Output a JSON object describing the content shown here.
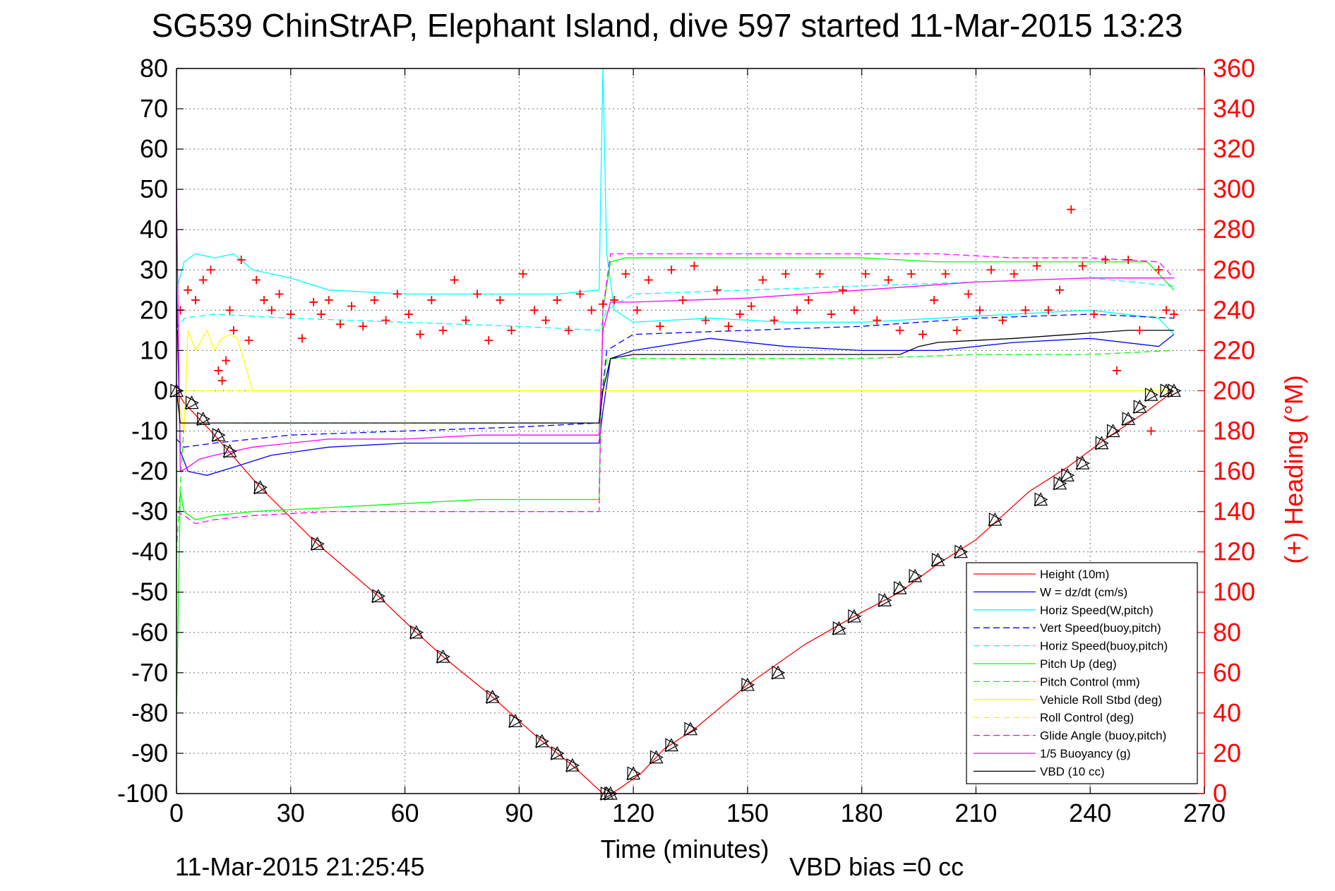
{
  "title": "SG539 ChinStrAP, Elephant Island, dive 597 started 11-Mar-2015 13:23",
  "footer": {
    "timestamp": "11-Mar-2015 21:25:45",
    "vbd_bias": "VBD bias =0 cc"
  },
  "colors": {
    "red": "#ff0000",
    "blue": "#0000ff",
    "cyan": "#00ffff",
    "green": "#00ff00",
    "yellow": "#ffff00",
    "magenta": "#ff00ff",
    "black": "#000000"
  },
  "chart_data": {
    "type": "line",
    "xlabel": "Time (minutes)",
    "ylabel": "",
    "y2label": "(+) Heading (°M)",
    "xlim": [
      0,
      270
    ],
    "ylim": [
      -100,
      80
    ],
    "y2lim": [
      0,
      360
    ],
    "xticks": [
      0,
      30,
      60,
      90,
      120,
      150,
      180,
      210,
      240,
      270
    ],
    "yticks": [
      -100,
      -90,
      -80,
      -70,
      -60,
      -50,
      -40,
      -30,
      -20,
      -10,
      0,
      10,
      20,
      30,
      40,
      50,
      60,
      70,
      80
    ],
    "y2ticks": [
      0,
      20,
      40,
      60,
      80,
      100,
      120,
      140,
      160,
      180,
      200,
      220,
      240,
      260,
      280,
      300,
      320,
      340,
      360
    ],
    "grid": true,
    "legend_position": "bottom-right",
    "series": [
      {
        "name": "Height (10m)",
        "color": "#ff0000",
        "dash": false,
        "x": [
          0,
          2,
          10,
          22,
          37,
          53,
          63,
          70,
          83,
          90,
          96,
          100,
          104,
          112,
          114,
          116,
          122,
          128,
          136,
          150,
          165,
          178,
          190,
          200,
          210,
          224,
          234,
          244,
          255,
          262
        ],
        "y": [
          0,
          -3,
          -11,
          -24,
          -38,
          -51,
          -60,
          -66,
          -76,
          -82,
          -87,
          -90,
          -93,
          -100,
          -100,
          -99,
          -95,
          -89,
          -84,
          -73,
          -63,
          -56,
          -50,
          -43,
          -37,
          -25,
          -19,
          -12,
          -5,
          0
        ]
      },
      {
        "name": "W = dz/dt (cm/s)",
        "color": "#0000ff",
        "dash": false,
        "x": [
          0,
          1,
          3,
          8,
          15,
          25,
          40,
          60,
          80,
          100,
          111,
          112,
          114,
          120,
          140,
          160,
          180,
          200,
          220,
          240,
          258,
          262
        ],
        "y": [
          25,
          -15,
          -20,
          -21,
          -19,
          -16,
          -14,
          -13,
          -13,
          -13,
          -13,
          -5,
          8,
          10,
          13,
          11,
          10,
          10,
          12,
          13,
          11,
          14
        ]
      },
      {
        "name": "Horiz Speed(W,pitch)",
        "color": "#00ffff",
        "dash": false,
        "x": [
          0,
          2,
          5,
          10,
          15,
          20,
          30,
          40,
          60,
          80,
          100,
          111,
          112,
          113,
          115,
          120,
          140,
          160,
          180,
          200,
          220,
          240,
          258,
          262
        ],
        "y": [
          25,
          32,
          34,
          33,
          34,
          30,
          28,
          25,
          24,
          24,
          24,
          25,
          80,
          34,
          20,
          17,
          18,
          17,
          17,
          18,
          19,
          20,
          18,
          14
        ]
      },
      {
        "name": "Vert Speed(buoy,pitch)",
        "color": "#0000ff",
        "dash": true,
        "x": [
          0,
          2,
          10,
          30,
          60,
          90,
          111,
          113,
          120,
          150,
          180,
          210,
          240,
          262
        ],
        "y": [
          -12,
          -14,
          -13,
          -11,
          -10,
          -9,
          -8,
          10,
          14,
          15,
          16,
          18,
          19,
          18
        ]
      },
      {
        "name": "Horiz Speed(buoy,pitch)",
        "color": "#00ffff",
        "dash": true,
        "x": [
          0,
          2,
          10,
          30,
          60,
          90,
          111,
          113,
          120,
          150,
          180,
          210,
          240,
          262
        ],
        "y": [
          15,
          18,
          19,
          18,
          17,
          16,
          15,
          20,
          24,
          25,
          26,
          27,
          28,
          26
        ]
      },
      {
        "name": "Pitch Up (deg)",
        "color": "#00ff00",
        "dash": false,
        "x": [
          0,
          1,
          2,
          5,
          10,
          20,
          40,
          60,
          80,
          100,
          111,
          112,
          114,
          118,
          140,
          160,
          180,
          200,
          220,
          240,
          255,
          262
        ],
        "y": [
          -80,
          -25,
          -30,
          -32,
          -31,
          -30,
          -29,
          -28,
          -27,
          -27,
          -27,
          20,
          32,
          33,
          33,
          33,
          33,
          32,
          32,
          32,
          32,
          25
        ]
      },
      {
        "name": "Pitch Control (mm)",
        "color": "#00ff00",
        "dash": true,
        "x": [
          0,
          2,
          10,
          40,
          70,
          111,
          113,
          120,
          150,
          180,
          210,
          240,
          262
        ],
        "y": [
          -40,
          -8,
          -8,
          -8,
          -8,
          -8,
          8,
          8,
          8,
          8,
          9,
          9,
          10
        ]
      },
      {
        "name": "Vehicle Roll Stbd (deg)",
        "color": "#ffff00",
        "dash": false,
        "x": [
          0,
          2,
          3,
          5,
          8,
          10,
          12,
          14,
          16,
          20,
          40,
          60,
          80,
          100,
          112,
          114,
          120,
          150,
          180,
          210,
          240,
          255,
          262
        ],
        "y": [
          0,
          -10,
          15,
          10,
          15,
          10,
          13,
          14,
          13,
          0,
          0,
          0,
          0,
          0,
          0,
          0,
          0,
          0,
          0,
          0,
          0,
          0,
          0
        ]
      },
      {
        "name": "Roll Control (deg)",
        "color": "#ffff00",
        "dash": true,
        "x": [
          0,
          50,
          100,
          150,
          200,
          262
        ],
        "y": [
          0,
          0,
          0,
          0,
          0,
          0
        ]
      },
      {
        "name": "Glide Angle (buoy,pitch)",
        "color": "#ff00ff",
        "dash": true,
        "x": [
          0,
          2,
          5,
          10,
          20,
          40,
          60,
          80,
          100,
          111,
          112,
          114,
          120,
          150,
          180,
          200,
          220,
          240,
          258,
          262
        ],
        "y": [
          -30,
          -31,
          -33,
          -32,
          -31,
          -30,
          -30,
          -30,
          -30,
          -30,
          20,
          34,
          34,
          34,
          34,
          34,
          33,
          33,
          32,
          28
        ]
      },
      {
        "name": "1/5 Buoyancy (g)",
        "color": "#ff00ff",
        "dash": false,
        "x": [
          0,
          1,
          3,
          6,
          10,
          20,
          40,
          60,
          80,
          100,
          111,
          112,
          114,
          120,
          150,
          180,
          210,
          240,
          262
        ],
        "y": [
          50,
          -20,
          -19,
          -17,
          -16,
          -14,
          -12,
          -12,
          -11,
          -11,
          -11,
          15,
          22,
          22,
          23,
          25,
          27,
          28,
          28
        ]
      },
      {
        "name": "VBD (10 cc)",
        "color": "#000000",
        "dash": false,
        "x": [
          0,
          1,
          2,
          111,
          112,
          114,
          120,
          190,
          195,
          200,
          220,
          250,
          262
        ],
        "y": [
          0,
          -8,
          -8,
          -8,
          0,
          8,
          9,
          9,
          11,
          12,
          13,
          15,
          15
        ]
      }
    ],
    "heading": {
      "name": "(+) Heading (°M)",
      "color": "#ff0000",
      "marker": "+",
      "x": [
        1,
        3,
        5,
        7,
        9,
        11,
        12,
        13,
        14,
        15,
        17,
        19,
        21,
        23,
        25,
        27,
        30,
        33,
        36,
        38,
        40,
        43,
        46,
        49,
        52,
        55,
        58,
        61,
        64,
        67,
        70,
        73,
        76,
        79,
        82,
        85,
        88,
        91,
        94,
        97,
        100,
        103,
        106,
        109,
        112,
        115,
        118,
        121,
        124,
        127,
        130,
        133,
        136,
        139,
        142,
        145,
        148,
        151,
        154,
        157,
        160,
        163,
        166,
        169,
        172,
        175,
        178,
        181,
        184,
        187,
        190,
        193,
        196,
        199,
        202,
        205,
        208,
        211,
        214,
        217,
        220,
        223,
        226,
        229,
        232,
        235,
        238,
        241,
        244,
        247,
        250,
        253,
        256,
        258,
        260,
        262
      ],
      "y": [
        240,
        250,
        245,
        255,
        260,
        210,
        205,
        215,
        240,
        230,
        265,
        225,
        255,
        245,
        240,
        248,
        238,
        226,
        244,
        238,
        245,
        233,
        242,
        232,
        245,
        235,
        248,
        238,
        228,
        245,
        230,
        255,
        235,
        248,
        225,
        245,
        230,
        258,
        240,
        235,
        245,
        230,
        248,
        240,
        243,
        245,
        258,
        240,
        255,
        232,
        260,
        245,
        262,
        235,
        250,
        232,
        238,
        242,
        255,
        235,
        258,
        240,
        245,
        258,
        238,
        250,
        240,
        258,
        235,
        255,
        230,
        258,
        228,
        245,
        258,
        230,
        248,
        240,
        260,
        235,
        258,
        240,
        262,
        240,
        250,
        290,
        262,
        238,
        265,
        210,
        265,
        230,
        180,
        260,
        240,
        238
      ]
    },
    "markers": {
      "name": "Height triangles",
      "x": [
        0,
        4,
        7,
        11,
        14,
        22,
        37,
        53,
        63,
        70,
        83,
        89,
        96,
        100,
        104,
        113,
        114,
        120,
        126,
        130,
        135,
        150,
        158,
        174,
        178,
        186,
        190,
        194,
        200,
        206,
        215,
        227,
        232,
        234,
        238,
        243,
        246,
        250,
        253,
        256,
        260,
        262
      ],
      "y": [
        0,
        -3,
        -7,
        -11,
        -15,
        -24,
        -38,
        -51,
        -60,
        -66,
        -76,
        -82,
        -87,
        -90,
        -93,
        -100,
        -100,
        -95,
        -91,
        -88,
        -84,
        -73,
        -70,
        -59,
        -56,
        -52,
        -49,
        -46,
        -42,
        -40,
        -32,
        -27,
        -23,
        -21,
        -18,
        -13,
        -10,
        -7,
        -4,
        -1,
        0,
        0
      ]
    }
  }
}
